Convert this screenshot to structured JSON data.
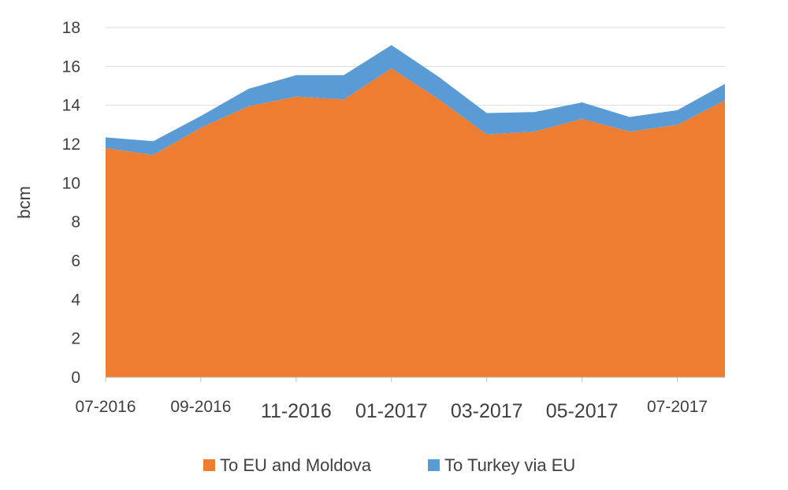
{
  "chart_data": {
    "type": "area",
    "stacked": true,
    "ylabel": "bcm",
    "xlabel": "",
    "ylim": [
      0,
      18
    ],
    "yticks": [
      0,
      2,
      4,
      6,
      8,
      10,
      12,
      14,
      16,
      18
    ],
    "grid": true,
    "legend_position": "bottom",
    "x": [
      "07-2016",
      "08-2016",
      "09-2016",
      "10-2016",
      "11-2016",
      "12-2016",
      "01-2017",
      "02-2017",
      "03-2017",
      "04-2017",
      "05-2017",
      "06-2017",
      "07-2017",
      "08-2017"
    ],
    "xtick_labels": [
      {
        "label": "07-2016",
        "x": "07-2016",
        "size": "small"
      },
      {
        "label": "09-2016",
        "x": "09-2016",
        "size": "small"
      },
      {
        "label": "11-2016",
        "x": "11-2016",
        "size": "big"
      },
      {
        "label": "01-2017",
        "x": "01-2017",
        "size": "big"
      },
      {
        "label": "03-2017",
        "x": "03-2017",
        "size": "big"
      },
      {
        "label": "05-2017",
        "x": "05-2017",
        "size": "big"
      },
      {
        "label": "07-2017",
        "x": "07-2017",
        "size": "small"
      }
    ],
    "series": [
      {
        "name": "To EU and Moldova",
        "color": "#ED7D31",
        "values": [
          11.8,
          11.45,
          12.85,
          13.95,
          14.45,
          14.3,
          15.9,
          14.3,
          12.5,
          12.65,
          13.3,
          12.65,
          13.0,
          14.25
        ]
      },
      {
        "name": "To Turkey via EU",
        "color": "#5B9BD5",
        "values": [
          0.55,
          0.7,
          0.6,
          0.9,
          1.1,
          1.25,
          1.2,
          1.15,
          1.1,
          1.0,
          0.85,
          0.75,
          0.75,
          0.85
        ]
      }
    ]
  }
}
